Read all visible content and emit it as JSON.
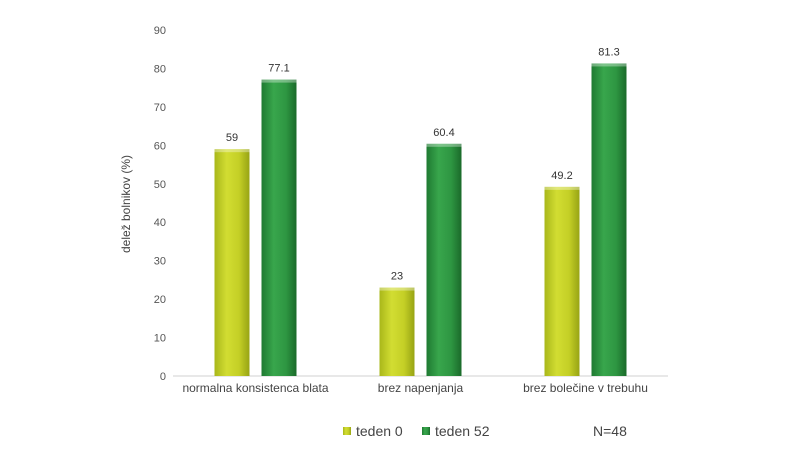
{
  "chart_data": {
    "type": "bar",
    "categories": [
      "normalna konsistenca blata",
      "brez napenjanja",
      "brez bolečine v trebuhu"
    ],
    "series": [
      {
        "name": "teden 0",
        "values": [
          59,
          23,
          49.2
        ],
        "color": "#c9d42b"
      },
      {
        "name": "teden 52",
        "values": [
          77.1,
          60.4,
          81.3
        ],
        "color": "#2e9a44"
      }
    ],
    "data_labels": [
      [
        "59",
        "23",
        "49.2"
      ],
      [
        "77.1",
        "60.4",
        "81.3"
      ]
    ],
    "title": "",
    "xlabel": "",
    "ylabel": "delež bolnikov (%)",
    "ylim": [
      0,
      90
    ],
    "yticks": [
      0,
      10,
      20,
      30,
      40,
      50,
      60,
      70,
      80,
      90
    ],
    "grid": false,
    "legend_position": "bottom",
    "annotation": "N=48"
  }
}
